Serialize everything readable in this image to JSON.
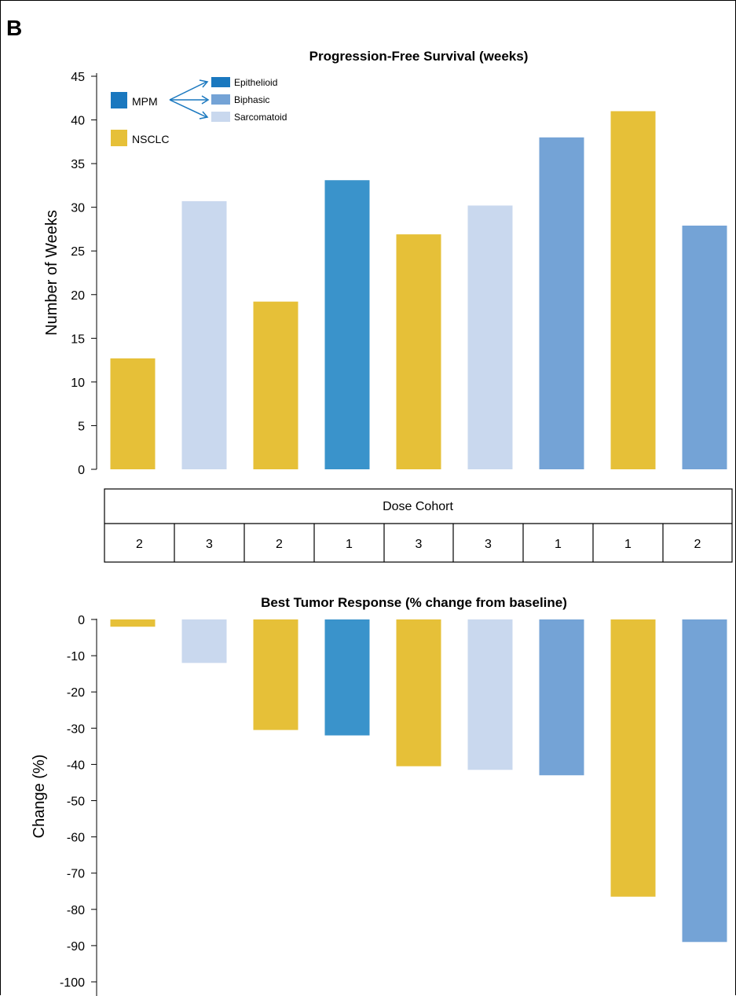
{
  "panel_letter": "B",
  "legend": {
    "mpm_label": "MPM",
    "nsclc_label": "NSCLC",
    "subtypes": [
      {
        "label": "Epithelioid",
        "color": "#1a78bf"
      },
      {
        "label": "Biphasic",
        "color": "#74a3d6"
      },
      {
        "label": "Sarcomatoid",
        "color": "#c9d8ee"
      }
    ],
    "mpm_color": "#1a78bf",
    "nsclc_color": "#e6c038",
    "arrow_color": "#1a78bf"
  },
  "dose_table": {
    "header": "Dose Cohort",
    "values": [
      "2",
      "3",
      "2",
      "1",
      "3",
      "3",
      "1",
      "1",
      "2"
    ]
  },
  "colors": {
    "nsclc": "#e6c038",
    "epithelioid": "#3a93cb",
    "biphasic": "#74a3d6",
    "sarcomatoid": "#c9d8ee"
  },
  "chart_data": [
    {
      "type": "bar",
      "title": "Progression-Free Survival (weeks)",
      "ylabel": "Number of Weeks",
      "ylim": [
        0,
        45
      ],
      "yticks": [
        "0",
        "5",
        "10",
        "15",
        "20",
        "25",
        "30",
        "35",
        "40",
        "45"
      ],
      "groups": [
        "nsclc",
        "sarcomatoid",
        "nsclc",
        "epithelioid",
        "nsclc",
        "sarcomatoid",
        "biphasic",
        "nsclc",
        "biphasic"
      ],
      "values": [
        12.7,
        30.7,
        19.2,
        33.1,
        26.9,
        30.2,
        38.0,
        41.0,
        27.9
      ]
    },
    {
      "type": "bar",
      "title": "Best Tumor Response (% change from baseline)",
      "ylabel": "Change  (%)",
      "ylim": [
        -100,
        0
      ],
      "yticks": [
        "0",
        "-10",
        "-20",
        "-30",
        "-40",
        "-50",
        "-60",
        "-70",
        "-80",
        "-90",
        "-100"
      ],
      "groups": [
        "nsclc",
        "sarcomatoid",
        "nsclc",
        "epithelioid",
        "nsclc",
        "sarcomatoid",
        "biphasic",
        "nsclc",
        "biphasic"
      ],
      "values": [
        -2,
        -12,
        -30.5,
        -32,
        -40.5,
        -41.5,
        -43,
        -76.5,
        -89
      ]
    }
  ]
}
